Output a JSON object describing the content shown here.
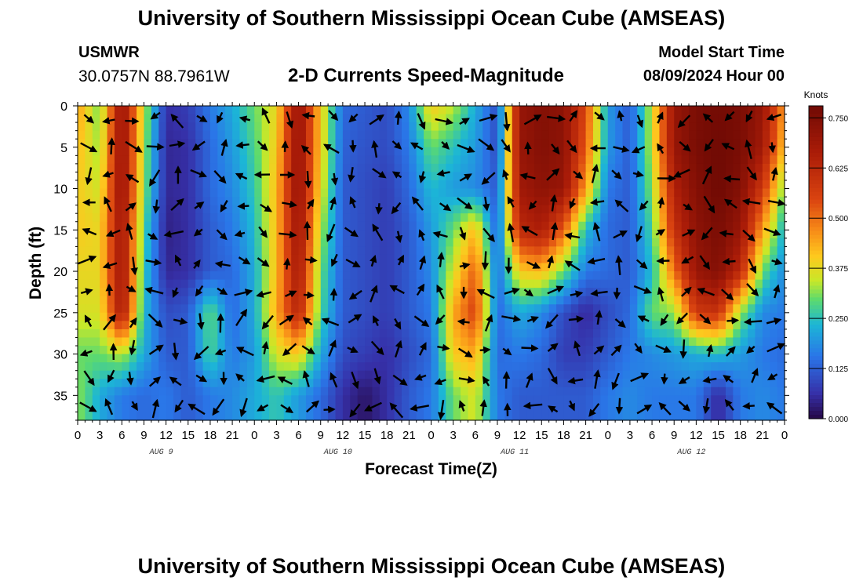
{
  "header": {
    "title": "University of Southern Mississippi Ocean Cube (AMSEAS)",
    "station": "USMWR",
    "coords": "30.0757N  88.7961W",
    "subtitle": "2-D Currents Speed-Magnitude",
    "model_start_label": "Model Start Time",
    "model_start_value": "08/09/2024 Hour 00"
  },
  "footer": {
    "title": "University of Southern Mississippi Ocean Cube (AMSEAS)"
  },
  "chart_data": {
    "type": "heatmap",
    "title": "2-D Currents Speed-Magnitude",
    "xlabel": "Forecast Time(Z)",
    "ylabel": "Depth (ft)",
    "x_ticks": [
      "0",
      "3",
      "6",
      "9",
      "12",
      "15",
      "18",
      "21",
      "0",
      "3",
      "6",
      "9",
      "12",
      "15",
      "18",
      "21",
      "0",
      "3",
      "6",
      "9",
      "12",
      "15",
      "18",
      "21",
      "0",
      "3",
      "6",
      "9",
      "12",
      "15",
      "18",
      "21",
      "0"
    ],
    "x_range_hours": [
      0,
      96
    ],
    "date_labels": [
      {
        "label": "AUG 9",
        "hour": 12
      },
      {
        "label": "AUG 10",
        "hour": 36
      },
      {
        "label": "AUG 11",
        "hour": 60
      },
      {
        "label": "AUG 12",
        "hour": 84
      }
    ],
    "y_ticks": [
      "0",
      "5",
      "10",
      "15",
      "20",
      "25",
      "30",
      "35"
    ],
    "y_range_ft": [
      0,
      38
    ],
    "colorbar": {
      "unit": "Knots",
      "ticks": [
        "0.750",
        "0.625",
        "0.500",
        "0.375",
        "0.250",
        "0.125",
        "0.000"
      ],
      "range": [
        0,
        0.78
      ]
    },
    "hours": [
      0,
      3,
      6,
      9,
      12,
      15,
      18,
      21,
      24,
      27,
      30,
      33,
      36,
      39,
      42,
      45,
      48,
      51,
      54,
      57,
      60,
      63,
      66,
      69,
      72,
      75,
      78,
      81,
      84,
      87,
      90,
      93,
      96
    ],
    "depths_ft": [
      0,
      5,
      10,
      15,
      20,
      25,
      30,
      35
    ],
    "speed_knots": [
      [
        0.45,
        0.3,
        0.72,
        0.35,
        0.06,
        0.08,
        0.16,
        0.22,
        0.3,
        0.38,
        0.72,
        0.4,
        0.14,
        0.12,
        0.1,
        0.18,
        0.4,
        0.34,
        0.22,
        0.1,
        0.7,
        0.74,
        0.72,
        0.55,
        0.2,
        0.12,
        0.35,
        0.7,
        0.76,
        0.77,
        0.76,
        0.7,
        0.45
      ],
      [
        0.42,
        0.32,
        0.72,
        0.33,
        0.05,
        0.06,
        0.14,
        0.2,
        0.28,
        0.4,
        0.72,
        0.4,
        0.13,
        0.11,
        0.1,
        0.16,
        0.3,
        0.25,
        0.2,
        0.1,
        0.7,
        0.74,
        0.72,
        0.52,
        0.2,
        0.12,
        0.35,
        0.7,
        0.76,
        0.78,
        0.76,
        0.68,
        0.4
      ],
      [
        0.4,
        0.35,
        0.72,
        0.32,
        0.05,
        0.06,
        0.14,
        0.18,
        0.26,
        0.42,
        0.72,
        0.38,
        0.12,
        0.1,
        0.08,
        0.14,
        0.24,
        0.2,
        0.18,
        0.12,
        0.68,
        0.72,
        0.7,
        0.45,
        0.16,
        0.12,
        0.32,
        0.65,
        0.74,
        0.78,
        0.74,
        0.58,
        0.3
      ],
      [
        0.4,
        0.38,
        0.7,
        0.28,
        0.04,
        0.06,
        0.12,
        0.16,
        0.24,
        0.42,
        0.7,
        0.34,
        0.12,
        0.1,
        0.08,
        0.12,
        0.2,
        0.3,
        0.42,
        0.12,
        0.62,
        0.66,
        0.52,
        0.24,
        0.14,
        0.12,
        0.28,
        0.6,
        0.72,
        0.76,
        0.7,
        0.45,
        0.22
      ],
      [
        0.38,
        0.38,
        0.7,
        0.26,
        0.05,
        0.06,
        0.12,
        0.14,
        0.22,
        0.42,
        0.68,
        0.3,
        0.12,
        0.1,
        0.08,
        0.12,
        0.18,
        0.36,
        0.52,
        0.14,
        0.4,
        0.42,
        0.3,
        0.16,
        0.14,
        0.12,
        0.24,
        0.5,
        0.7,
        0.74,
        0.62,
        0.3,
        0.18
      ],
      [
        0.36,
        0.36,
        0.68,
        0.24,
        0.1,
        0.12,
        0.3,
        0.14,
        0.22,
        0.44,
        0.64,
        0.28,
        0.12,
        0.1,
        0.08,
        0.12,
        0.16,
        0.44,
        0.56,
        0.14,
        0.22,
        0.18,
        0.1,
        0.05,
        0.1,
        0.14,
        0.3,
        0.32,
        0.58,
        0.6,
        0.32,
        0.18,
        0.16
      ],
      [
        0.3,
        0.3,
        0.34,
        0.22,
        0.12,
        0.12,
        0.28,
        0.16,
        0.2,
        0.36,
        0.4,
        0.22,
        0.1,
        0.08,
        0.06,
        0.1,
        0.14,
        0.4,
        0.44,
        0.14,
        0.16,
        0.14,
        0.08,
        0.08,
        0.12,
        0.16,
        0.18,
        0.2,
        0.22,
        0.24,
        0.2,
        0.16,
        0.14
      ],
      [
        0.32,
        0.22,
        0.16,
        0.14,
        0.16,
        0.12,
        0.16,
        0.18,
        0.22,
        0.26,
        0.2,
        0.14,
        0.06,
        0.02,
        0.06,
        0.12,
        0.16,
        0.3,
        0.36,
        0.16,
        0.12,
        0.12,
        0.12,
        0.12,
        0.16,
        0.18,
        0.16,
        0.16,
        0.16,
        0.05,
        0.16,
        0.18,
        0.16
      ]
    ]
  }
}
